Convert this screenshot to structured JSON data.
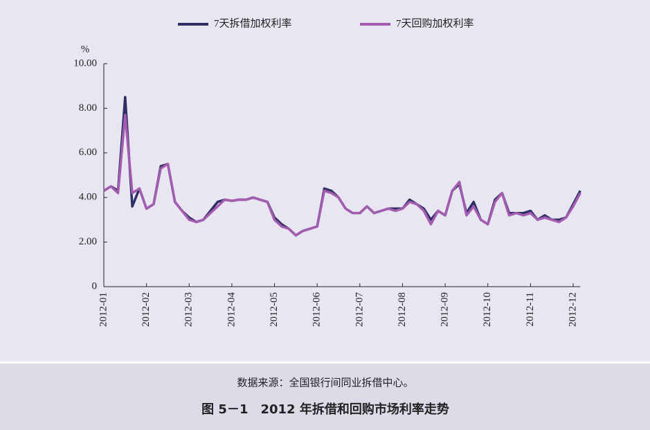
{
  "chart_data": {
    "type": "line",
    "legend_position": "top",
    "y_unit": "%",
    "source": "数据来源：全国银行间同业拆借中心。",
    "caption": "图 5－1　2012 年拆借和回购市场利率走势",
    "categories": [
      "2012-01",
      null,
      null,
      null,
      null,
      null,
      "2012-02",
      null,
      null,
      null,
      null,
      null,
      "2012-03",
      null,
      null,
      null,
      null,
      null,
      "2012-04",
      null,
      null,
      null,
      null,
      null,
      "2012-05",
      null,
      null,
      null,
      null,
      null,
      "2012-06",
      null,
      null,
      null,
      null,
      null,
      "2012-07",
      null,
      null,
      null,
      null,
      null,
      "2012-08",
      null,
      null,
      null,
      null,
      null,
      "2012-09",
      null,
      null,
      null,
      null,
      null,
      "2012-10",
      null,
      null,
      null,
      null,
      null,
      "2012-11",
      null,
      null,
      null,
      null,
      null,
      "2012-12",
      null
    ],
    "series": [
      {
        "name": "7天拆借加权利率",
        "color": "#2f2f66",
        "values": [
          4.3,
          4.5,
          4.3,
          8.5,
          3.6,
          4.4,
          3.5,
          3.7,
          5.4,
          5.5,
          3.8,
          3.4,
          3.1,
          2.9,
          3.0,
          3.4,
          3.8,
          3.9,
          3.85,
          3.9,
          3.9,
          4.0,
          3.9,
          3.8,
          3.1,
          2.8,
          2.6,
          2.3,
          2.5,
          2.6,
          2.7,
          4.4,
          4.3,
          4.0,
          3.5,
          3.3,
          3.3,
          3.6,
          3.3,
          3.4,
          3.5,
          3.5,
          3.5,
          3.9,
          3.7,
          3.5,
          3.0,
          3.4,
          3.2,
          4.3,
          4.6,
          3.3,
          3.8,
          3.0,
          2.8,
          3.9,
          4.2,
          3.3,
          3.3,
          3.3,
          3.4,
          3.0,
          3.2,
          3.0,
          3.0,
          3.1,
          3.7,
          4.3
        ]
      },
      {
        "name": "7天回购加权利率",
        "color": "#a45cb0",
        "values": [
          4.3,
          4.5,
          4.2,
          7.7,
          4.2,
          4.4,
          3.5,
          3.7,
          5.3,
          5.5,
          3.8,
          3.4,
          3.0,
          2.9,
          3.0,
          3.3,
          3.6,
          3.9,
          3.85,
          3.9,
          3.9,
          4.0,
          3.9,
          3.8,
          3.0,
          2.7,
          2.6,
          2.3,
          2.5,
          2.6,
          2.7,
          4.3,
          4.2,
          4.0,
          3.5,
          3.3,
          3.3,
          3.6,
          3.3,
          3.4,
          3.5,
          3.4,
          3.5,
          3.8,
          3.7,
          3.4,
          2.8,
          3.4,
          3.2,
          4.3,
          4.7,
          3.2,
          3.6,
          3.0,
          2.8,
          3.8,
          4.2,
          3.2,
          3.3,
          3.2,
          3.3,
          3.0,
          3.1,
          3.0,
          2.9,
          3.1,
          3.6,
          4.2
        ]
      }
    ],
    "ylim": [
      0,
      10
    ],
    "yticks": [
      0,
      {
        "value": 2,
        "label": "2.00"
      },
      {
        "value": 4,
        "label": "4.00"
      },
      {
        "value": 6,
        "label": "6.00"
      },
      {
        "value": 8,
        "label": "8.00"
      },
      {
        "value": 10,
        "label": "10.00"
      }
    ],
    "grid": false
  }
}
